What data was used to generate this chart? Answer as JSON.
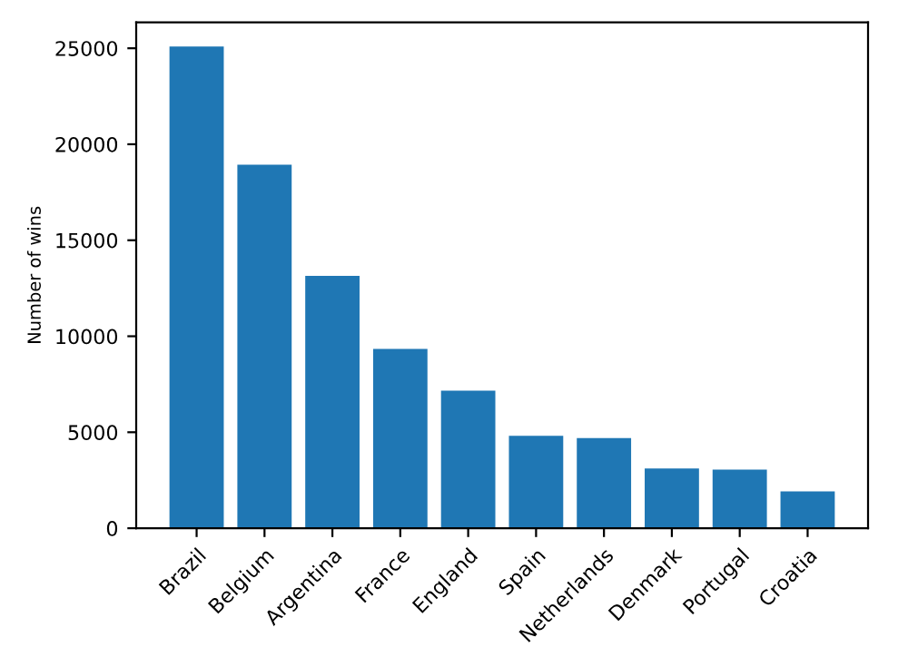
{
  "chart_data": {
    "type": "bar",
    "ylabel": "Number of wins",
    "categories": [
      "Brazil",
      "Belgium",
      "Argentina",
      "France",
      "England",
      "Spain",
      "Netherlands",
      "Denmark",
      "Portugal",
      "Croatia"
    ],
    "values": [
      25090,
      18930,
      13140,
      9340,
      7170,
      4810,
      4690,
      3110,
      3050,
      1920
    ],
    "color": "#1f77b4",
    "ylim": [
      0,
      26350
    ],
    "yticks": [
      0,
      5000,
      10000,
      15000,
      20000,
      25000
    ],
    "grid": false
  }
}
